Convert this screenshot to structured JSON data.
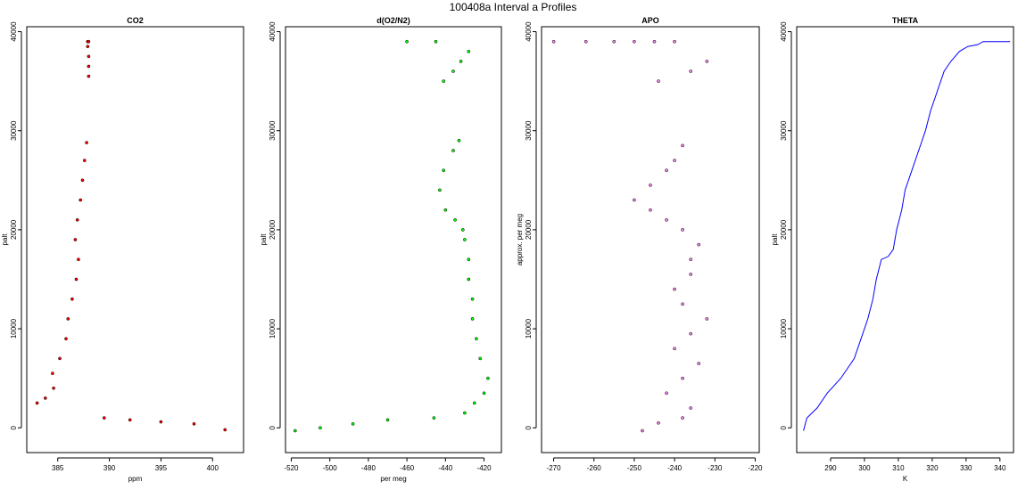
{
  "figure": {
    "title": "100408a   Interval a Profiles"
  },
  "chart_data": [
    {
      "type": "scatter",
      "title": "CO2",
      "xlabel": "ppm",
      "ylabel": "palt",
      "xlim": [
        382,
        403
      ],
      "ylim": [
        -2500,
        40500
      ],
      "xticks": [
        385,
        390,
        395,
        400
      ],
      "yticks": [
        0,
        10000,
        20000,
        30000,
        40000
      ],
      "yticks_labeled": true,
      "fill_color": "#ff0000",
      "series": [
        {
          "x": [
            383.0,
            383.8,
            384.6,
            384.5,
            385.2,
            385.8,
            386.0,
            386.4,
            386.8,
            387.0,
            386.7,
            386.9,
            387.2,
            387.4,
            387.6,
            387.8,
            388.0,
            388.0,
            388.0,
            387.9,
            387.9,
            388.0,
            389.5,
            392.0,
            395.0,
            398.2,
            401.2
          ],
          "y": [
            2500,
            3000,
            4000,
            5500,
            7000,
            9000,
            11000,
            13000,
            15000,
            17000,
            19000,
            21000,
            23000,
            25000,
            27000,
            28800,
            35500,
            36500,
            37500,
            38500,
            39000,
            39000,
            1000,
            800,
            600,
            400,
            -200
          ]
        }
      ]
    },
    {
      "type": "scatter",
      "title": "d(O2/N2)",
      "xlabel": "per meg",
      "ylabel": "palt",
      "xlim": [
        -523,
        -411
      ],
      "ylim": [
        -2500,
        40500
      ],
      "xticks": [
        -520,
        -500,
        -480,
        -460,
        -440,
        -420
      ],
      "yticks": [
        0,
        10000,
        20000,
        30000,
        40000
      ],
      "yticks_labeled": true,
      "fill_color": "#00ff00",
      "series": [
        {
          "x": [
            -518,
            -505,
            -488,
            -470,
            -446,
            -430,
            -425,
            -420,
            -418,
            -422,
            -424,
            -426,
            -426,
            -428,
            -428,
            -430,
            -431,
            -435,
            -440,
            -443,
            -441,
            -436,
            -433,
            -441,
            -436,
            -432,
            -428,
            -460,
            -445
          ],
          "y": [
            -300,
            0,
            400,
            800,
            1000,
            1500,
            2500,
            3500,
            5000,
            7000,
            9000,
            11000,
            13000,
            15000,
            17000,
            19000,
            20000,
            21000,
            22000,
            24000,
            26000,
            28000,
            29000,
            35000,
            36000,
            37000,
            38000,
            39000,
            39000
          ]
        }
      ]
    },
    {
      "type": "scatter",
      "title": "APO",
      "xlabel": "",
      "ylabel": "approx. per meg",
      "xlim": [
        -273,
        -219
      ],
      "ylim": [
        -2500,
        40500
      ],
      "xticks": [
        -270,
        -260,
        -250,
        -240,
        -230,
        -220
      ],
      "yticks": [
        0,
        10000,
        20000,
        30000,
        40000
      ],
      "yticks_labeled": true,
      "fill_color": "#ee82ee",
      "series": [
        {
          "x": [
            -248,
            -244,
            -238,
            -236,
            -242,
            -238,
            -234,
            -240,
            -236,
            -232,
            -238,
            -240,
            -236,
            -236,
            -234,
            -238,
            -242,
            -246,
            -250,
            -246,
            -242,
            -240,
            -238,
            -244,
            -236,
            -232,
            -270,
            -262,
            -255,
            -250,
            -245,
            -240
          ],
          "y": [
            -300,
            500,
            1000,
            2000,
            3500,
            5000,
            6500,
            8000,
            9500,
            11000,
            12500,
            14000,
            15500,
            17000,
            18500,
            20000,
            21000,
            22000,
            23000,
            24500,
            26000,
            27000,
            28500,
            35000,
            36000,
            37000,
            39000,
            39000,
            39000,
            39000,
            39000,
            39000
          ]
        }
      ]
    },
    {
      "type": "line",
      "title": "THETA",
      "xlabel": "K",
      "ylabel": "palt",
      "xlim": [
        280,
        344
      ],
      "ylim": [
        -2500,
        40500
      ],
      "xticks": [
        290,
        300,
        310,
        320,
        330,
        340
      ],
      "yticks": [
        0,
        10000,
        20000,
        30000,
        40000
      ],
      "yticks_labeled": true,
      "line_color": "#0000ff",
      "series": [
        {
          "x": [
            282.0,
            283.0,
            286.0,
            289.0,
            293.0,
            297.0,
            299.0,
            301.0,
            302.5,
            303.5,
            305.0,
            307.0,
            308.5,
            309.5,
            311.0,
            312.0,
            314.0,
            316.0,
            318.0,
            319.5,
            321.5,
            323.5,
            325.5,
            328.0,
            330.5,
            333.5,
            335.0,
            343.0
          ],
          "y": [
            -300,
            1000,
            2000,
            3500,
            5000,
            7000,
            9000,
            11000,
            13000,
            15000,
            17000,
            17300,
            18000,
            20000,
            22000,
            24000,
            26000,
            28000,
            30000,
            32000,
            34000,
            36000,
            37000,
            38000,
            38500,
            38700,
            39000,
            39000
          ]
        }
      ]
    }
  ]
}
